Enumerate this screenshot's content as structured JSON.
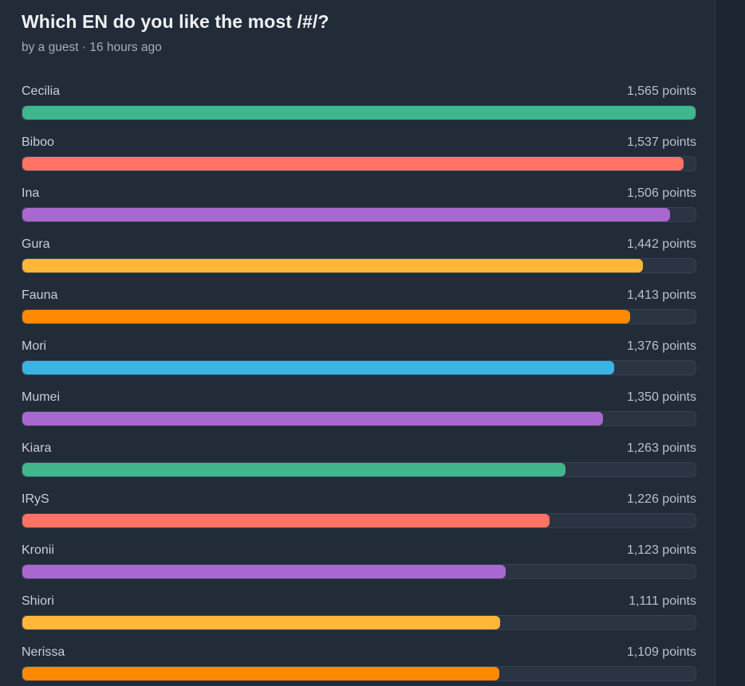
{
  "poll": {
    "title": "Which EN do you like the most /#/?",
    "meta": "by a guest · 16 hours ago",
    "max_points": 1565,
    "options": [
      {
        "label": "Cecilia",
        "points": 1565,
        "points_text": "1,565 points",
        "color": "#3fb68b"
      },
      {
        "label": "Biboo",
        "points": 1537,
        "points_text": "1,537 points",
        "color": "#ff7364"
      },
      {
        "label": "Ina",
        "points": 1506,
        "points_text": "1,506 points",
        "color": "#a968d0"
      },
      {
        "label": "Gura",
        "points": 1442,
        "points_text": "1,442 points",
        "color": "#ffb73a"
      },
      {
        "label": "Fauna",
        "points": 1413,
        "points_text": "1,413 points",
        "color": "#ff8a00"
      },
      {
        "label": "Mori",
        "points": 1376,
        "points_text": "1,376 points",
        "color": "#3ab4e3"
      },
      {
        "label": "Mumei",
        "points": 1350,
        "points_text": "1,350 points",
        "color": "#a968d0"
      },
      {
        "label": "Kiara",
        "points": 1263,
        "points_text": "1,263 points",
        "color": "#3fb68b"
      },
      {
        "label": "IRyS",
        "points": 1226,
        "points_text": "1,226 points",
        "color": "#ff7364"
      },
      {
        "label": "Kronii",
        "points": 1123,
        "points_text": "1,123 points",
        "color": "#a968d0"
      },
      {
        "label": "Shiori",
        "points": 1111,
        "points_text": "1,111 points",
        "color": "#ffb73a"
      },
      {
        "label": "Nerissa",
        "points": 1109,
        "points_text": "1,109 points",
        "color": "#ff8a00"
      }
    ]
  }
}
